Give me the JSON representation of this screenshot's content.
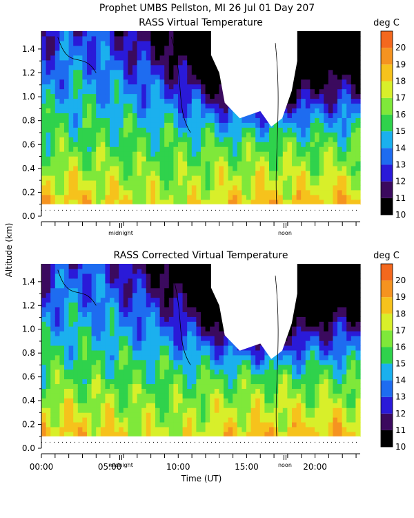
{
  "header": {
    "title": "Prophet  UMBS Pellston, MI  26 Jul 01 Day 207"
  },
  "shared": {
    "ylabel": "Altitude (km)",
    "xlabel": "Time (UT)",
    "colorbar_unit": "deg C",
    "midnight_label": "midnight",
    "noon_label": "noon"
  },
  "colors": {
    "scale": [
      "#000000",
      "#3b0a5e",
      "#2a1ad8",
      "#1e6cf0",
      "#1bb0ee",
      "#2fd24c",
      "#7fe83a",
      "#d8ef2a",
      "#f6c21c",
      "#f59320",
      "#f3681e",
      "#ef2a18",
      "#f8f8f8"
    ],
    "missing": "#ffffff"
  },
  "chart_data": [
    {
      "type": "heatmap",
      "title": "RASS Virtual Temperature",
      "x_unit": "hours UT (day 207, 00:00 at left)",
      "x_range": [
        0,
        23.3
      ],
      "ylim": [
        0.0,
        1.55
      ],
      "y_ticks": [
        "0.0",
        "0.2",
        "0.4",
        "0.6",
        "0.8",
        "1.0",
        "1.2",
        "1.4"
      ],
      "x_ticks": [],
      "colorbar_ticks": [
        "10",
        "11",
        "12",
        "13",
        "14",
        "15",
        "16",
        "17",
        "18",
        "19",
        "20"
      ],
      "colorbar_range": [
        10,
        21
      ],
      "midnight_hour": 5.8,
      "noon_hour": 17.8,
      "data_bottom_km": 0.1,
      "dotted_line_km": 0.05,
      "features": {
        "surface_temp_warm": 19,
        "upper_temp_night": 17,
        "cold_core_center_hour": 15.5,
        "cold_core_min_temp": 10,
        "cold_layer_base_km": 0.6
      }
    },
    {
      "type": "heatmap",
      "title": "RASS Corrected Virtual Temperature",
      "x_unit": "hours UT (day 207, 00:00 at left)",
      "x_range": [
        0,
        23.3
      ],
      "ylim": [
        0.0,
        1.55
      ],
      "y_ticks": [
        "0.0",
        "0.2",
        "0.4",
        "0.6",
        "0.8",
        "1.0",
        "1.2",
        "1.4"
      ],
      "x_ticks": [
        "00:00",
        "05:00",
        "10:00",
        "15:00",
        "20:00"
      ],
      "x_tick_hours": [
        0,
        5,
        10,
        15,
        20
      ],
      "colorbar_ticks": [
        "10",
        "11",
        "12",
        "13",
        "14",
        "15",
        "16",
        "17",
        "18",
        "19",
        "20"
      ],
      "colorbar_range": [
        10,
        21
      ],
      "midnight_hour": 5.8,
      "noon_hour": 17.8,
      "data_bottom_km": 0.1,
      "dotted_line_km": 0.05,
      "features": {
        "surface_temp_warm": 19,
        "upper_temp_night": 16,
        "cold_core_center_hour": 15.5,
        "cold_core_min_temp": 10,
        "cold_layer_base_km": 0.55
      }
    }
  ]
}
